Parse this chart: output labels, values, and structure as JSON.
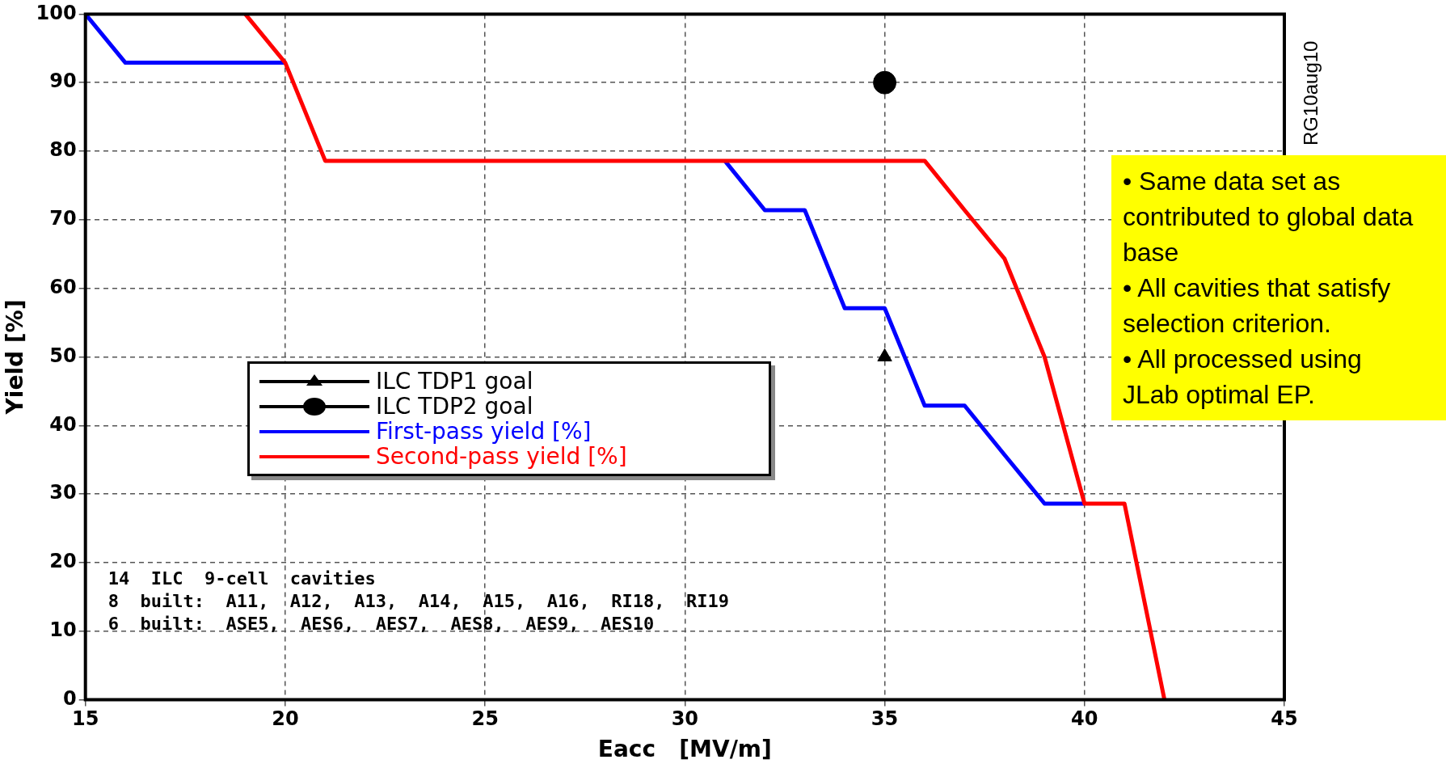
{
  "chart_data": {
    "type": "line",
    "xlabel": "Eacc   [MV/m]",
    "ylabel": "Yield [%]",
    "xlim": [
      15,
      45
    ],
    "xticks": [
      15,
      20,
      25,
      30,
      35,
      40,
      45
    ],
    "ylim": [
      0,
      100
    ],
    "yticks": [
      0,
      10,
      20,
      30,
      40,
      50,
      60,
      70,
      80,
      90,
      100
    ],
    "grid": true,
    "legend": "center left",
    "line_style": "solid",
    "series": [
      {
        "name": "ILC TDP1 goal",
        "type": "scatter",
        "marker": "triangle",
        "color": "#000000",
        "x": [
          35
        ],
        "values": [
          50
        ]
      },
      {
        "name": "ILC TDP2 goal",
        "type": "scatter",
        "marker": "circle",
        "color": "#000000",
        "x": [
          35
        ],
        "values": [
          90
        ]
      },
      {
        "name": "First-pass yield [%]",
        "type": "line",
        "marker": "none",
        "color": "#0000ff",
        "x": [
          15,
          16,
          20,
          21,
          31,
          32,
          33,
          34,
          35,
          36,
          37,
          38,
          39,
          40
        ],
        "values": [
          100,
          92.9,
          92.9,
          null,
          78.6,
          71.4,
          71.4,
          57.1,
          57.1,
          42.9,
          42.9,
          35.7,
          28.6,
          28.6
        ]
      },
      {
        "name": "Second-pass yield [%]",
        "type": "line",
        "marker": "none",
        "color": "#ff0000",
        "x": [
          19,
          20,
          21,
          36,
          37,
          38,
          39,
          40,
          41,
          42
        ],
        "values": [
          100,
          92.9,
          78.6,
          78.6,
          71.4,
          64.3,
          50,
          28.6,
          28.6,
          0
        ]
      }
    ],
    "annotations": [
      "14  ILC  9-cell  cavities",
      "8  built:  A11,  A12,  A13,  A14,  A15,  A16,  RI18,  RI19",
      "6  built:  ASE5,  AES6,  AES7,  AES8,  AES9,  AES10",
      "RG10aug10",
      "• Same data set as contributed to global data base",
      "• All cavities that satisfy selection criterion.",
      "• All processed using JLab optimal EP."
    ]
  }
}
